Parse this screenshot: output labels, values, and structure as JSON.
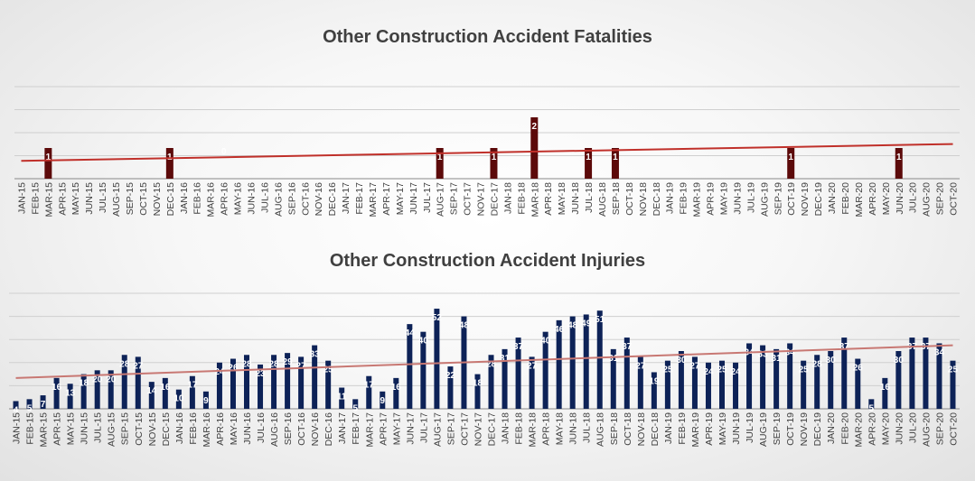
{
  "chart_data": [
    {
      "type": "bar",
      "title": "Other Construction Accident Fatalities",
      "trendline": true,
      "grid": true,
      "colors": {
        "bar": "#5c0a0a",
        "trend": "#c0302a",
        "label": "#ffffff",
        "grid": "#cfcfcf",
        "axis": "#888888"
      },
      "ylim": [
        0,
        3
      ],
      "categories": [
        "JAN-15",
        "FEB-15",
        "MAR-15",
        "APR-15",
        "MAY-15",
        "JUN-15",
        "JUL-15",
        "AUG-15",
        "SEP-15",
        "OCT-15",
        "NOV-15",
        "DEC-15",
        "JAN-16",
        "FEB-16",
        "MAR-16",
        "APR-16",
        "MAY-16",
        "JUN-16",
        "JUL-16",
        "AUG-16",
        "SEP-16",
        "OCT-16",
        "NOV-16",
        "DEC-16",
        "JAN-17",
        "FEB-17",
        "MAR-17",
        "APR-17",
        "MAY-17",
        "JUN-17",
        "JUL-17",
        "AUG-17",
        "SEP-17",
        "OCT-17",
        "NOV-17",
        "DEC-17",
        "JAN-18",
        "FEB-18",
        "MAR-18",
        "APR-18",
        "MAY-18",
        "JUN-18",
        "JUL-18",
        "AUG-18",
        "SEP-18",
        "OCT-18",
        "NOV-18",
        "DEC-18",
        "JAN-19",
        "FEB-19",
        "MAR-19",
        "APR-19",
        "MAY-19",
        "JUN-19",
        "JUL-19",
        "AUG-19",
        "SEP-19",
        "OCT-19",
        "NOV-19",
        "DEC-19",
        "JAN-20",
        "FEB-20",
        "MAR-20",
        "APR-20",
        "MAY-20",
        "JUN-20",
        "JUL-20",
        "AUG-20",
        "SEP-20",
        "OCT-20"
      ],
      "values": [
        null,
        null,
        1,
        null,
        null,
        null,
        null,
        null,
        null,
        null,
        null,
        1,
        null,
        null,
        null,
        0,
        null,
        null,
        null,
        null,
        null,
        null,
        null,
        null,
        null,
        null,
        null,
        null,
        null,
        null,
        null,
        1,
        null,
        null,
        null,
        1,
        null,
        null,
        2,
        null,
        null,
        null,
        1,
        null,
        1,
        null,
        null,
        null,
        null,
        null,
        null,
        null,
        null,
        null,
        null,
        null,
        null,
        1,
        null,
        null,
        null,
        null,
        null,
        null,
        null,
        1,
        null,
        null,
        null,
        null
      ]
    },
    {
      "type": "bar",
      "title": "Other Construction Accident Injuries",
      "trendline": true,
      "grid": true,
      "colors": {
        "bar": "#0d2257",
        "trend": "#c87873",
        "label": "#ffffff",
        "grid": "#cfcfcf",
        "axis": "#888888"
      },
      "ylim": [
        0,
        60
      ],
      "categories": [
        "JAN-15",
        "FEB-15",
        "MAR-15",
        "APR-15",
        "MAY-15",
        "JUN-15",
        "JUL-15",
        "AUG-15",
        "SEP-15",
        "OCT-15",
        "NOV-15",
        "DEC-15",
        "JAN-16",
        "FEB-16",
        "MAR-16",
        "APR-16",
        "MAY-16",
        "JUN-16",
        "JUL-16",
        "AUG-16",
        "SEP-16",
        "OCT-16",
        "NOV-16",
        "DEC-16",
        "JAN-17",
        "FEB-17",
        "MAR-17",
        "APR-17",
        "MAY-17",
        "JUN-17",
        "JUL-17",
        "AUG-17",
        "SEP-17",
        "OCT-17",
        "NOV-17",
        "DEC-17",
        "JAN-18",
        "FEB-18",
        "MAR-18",
        "APR-18",
        "MAY-18",
        "JUN-18",
        "JUL-18",
        "AUG-18",
        "SEP-18",
        "OCT-18",
        "NOV-18",
        "DEC-18",
        "JAN-19",
        "FEB-19",
        "MAR-19",
        "APR-19",
        "MAY-19",
        "JUN-19",
        "JUL-19",
        "AUG-19",
        "SEP-19",
        "OCT-19",
        "NOV-19",
        "DEC-19",
        "JAN-20",
        "FEB-20",
        "MAR-20",
        "APR-20",
        "MAY-20",
        "JUN-20",
        "JUL-20",
        "AUG-20",
        "SEP-20",
        "OCT-20"
      ],
      "values": [
        4,
        5,
        7,
        16,
        13,
        18,
        20,
        20,
        28,
        27,
        14,
        16,
        10,
        17,
        9,
        24,
        26,
        28,
        23,
        28,
        29,
        27,
        33,
        25,
        11,
        5,
        17,
        9,
        16,
        44,
        40,
        52,
        22,
        48,
        18,
        28,
        31,
        37,
        27,
        40,
        46,
        48,
        49,
        51,
        31,
        37,
        27,
        19,
        25,
        30,
        27,
        24,
        25,
        24,
        34,
        33,
        31,
        34,
        25,
        28,
        30,
        37,
        26,
        5,
        16,
        30,
        37,
        37,
        34,
        25
      ]
    }
  ]
}
